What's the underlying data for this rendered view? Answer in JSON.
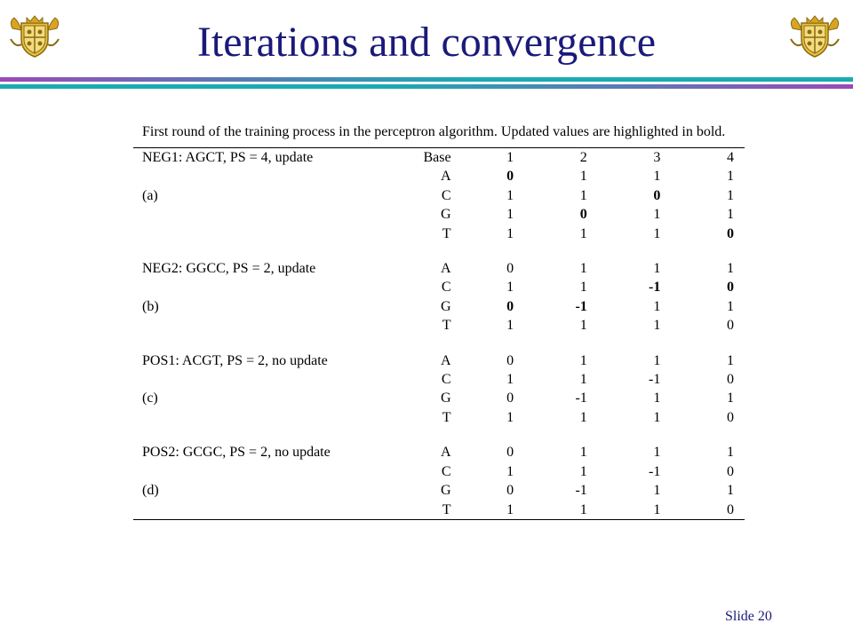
{
  "slide": {
    "title": "Iterations and convergence",
    "slide_number_label": "Slide 20"
  },
  "colors": {
    "title": "#1a1a7a",
    "rule_purple": "#8b3aa8",
    "rule_teal": "#1aaab2",
    "crest_gold": "#d9a520"
  },
  "icons": {
    "crest": "university-crest-icon"
  },
  "table": {
    "caption": "First round of the training process in the perceptron algorithm. Updated values are highlighted in bold.",
    "header": {
      "label": "NEG1: AGCT, PS = 4, update",
      "base": "Base",
      "cols": [
        "1",
        "2",
        "3",
        "4"
      ]
    },
    "groups": [
      {
        "rows": [
          {
            "label": "",
            "base": "A",
            "v": [
              "0",
              "1",
              "1",
              "1"
            ],
            "bold": [
              true,
              false,
              false,
              false
            ]
          },
          {
            "label": "(a)",
            "base": "C",
            "v": [
              "1",
              "1",
              "0",
              "1"
            ],
            "bold": [
              false,
              false,
              true,
              false
            ]
          },
          {
            "label": "",
            "base": "G",
            "v": [
              "1",
              "0",
              "1",
              "1"
            ],
            "bold": [
              false,
              true,
              false,
              false
            ]
          },
          {
            "label": "",
            "base": "T",
            "v": [
              "1",
              "1",
              "1",
              "0"
            ],
            "bold": [
              false,
              false,
              false,
              true
            ]
          }
        ]
      },
      {
        "rows": [
          {
            "label": "NEG2: GGCC, PS = 2, update",
            "base": "A",
            "v": [
              "0",
              "1",
              "1",
              "1"
            ],
            "bold": [
              false,
              false,
              false,
              false
            ]
          },
          {
            "label": "",
            "base": "C",
            "v": [
              "1",
              "1",
              "-1",
              "0"
            ],
            "bold": [
              false,
              false,
              true,
              true
            ]
          },
          {
            "label": "(b)",
            "base": "G",
            "v": [
              "0",
              "-1",
              "1",
              "1"
            ],
            "bold": [
              true,
              true,
              false,
              false
            ]
          },
          {
            "label": "",
            "base": "T",
            "v": [
              "1",
              "1",
              "1",
              "0"
            ],
            "bold": [
              false,
              false,
              false,
              false
            ]
          }
        ]
      },
      {
        "rows": [
          {
            "label": "POS1: ACGT, PS = 2, no update",
            "base": "A",
            "v": [
              "0",
              "1",
              "1",
              "1"
            ],
            "bold": [
              false,
              false,
              false,
              false
            ]
          },
          {
            "label": "",
            "base": "C",
            "v": [
              "1",
              "1",
              "-1",
              "0"
            ],
            "bold": [
              false,
              false,
              false,
              false
            ]
          },
          {
            "label": "(c)",
            "base": "G",
            "v": [
              "0",
              "-1",
              "1",
              "1"
            ],
            "bold": [
              false,
              false,
              false,
              false
            ]
          },
          {
            "label": "",
            "base": "T",
            "v": [
              "1",
              "1",
              "1",
              "0"
            ],
            "bold": [
              false,
              false,
              false,
              false
            ]
          }
        ]
      },
      {
        "rows": [
          {
            "label": "POS2: GCGC, PS = 2, no update",
            "base": "A",
            "v": [
              "0",
              "1",
              "1",
              "1"
            ],
            "bold": [
              false,
              false,
              false,
              false
            ]
          },
          {
            "label": "",
            "base": "C",
            "v": [
              "1",
              "1",
              "-1",
              "0"
            ],
            "bold": [
              false,
              false,
              false,
              false
            ]
          },
          {
            "label": "(d)",
            "base": "G",
            "v": [
              "0",
              "-1",
              "1",
              "1"
            ],
            "bold": [
              false,
              false,
              false,
              false
            ]
          },
          {
            "label": "",
            "base": "T",
            "v": [
              "1",
              "1",
              "1",
              "0"
            ],
            "bold": [
              false,
              false,
              false,
              false
            ]
          }
        ]
      }
    ]
  }
}
